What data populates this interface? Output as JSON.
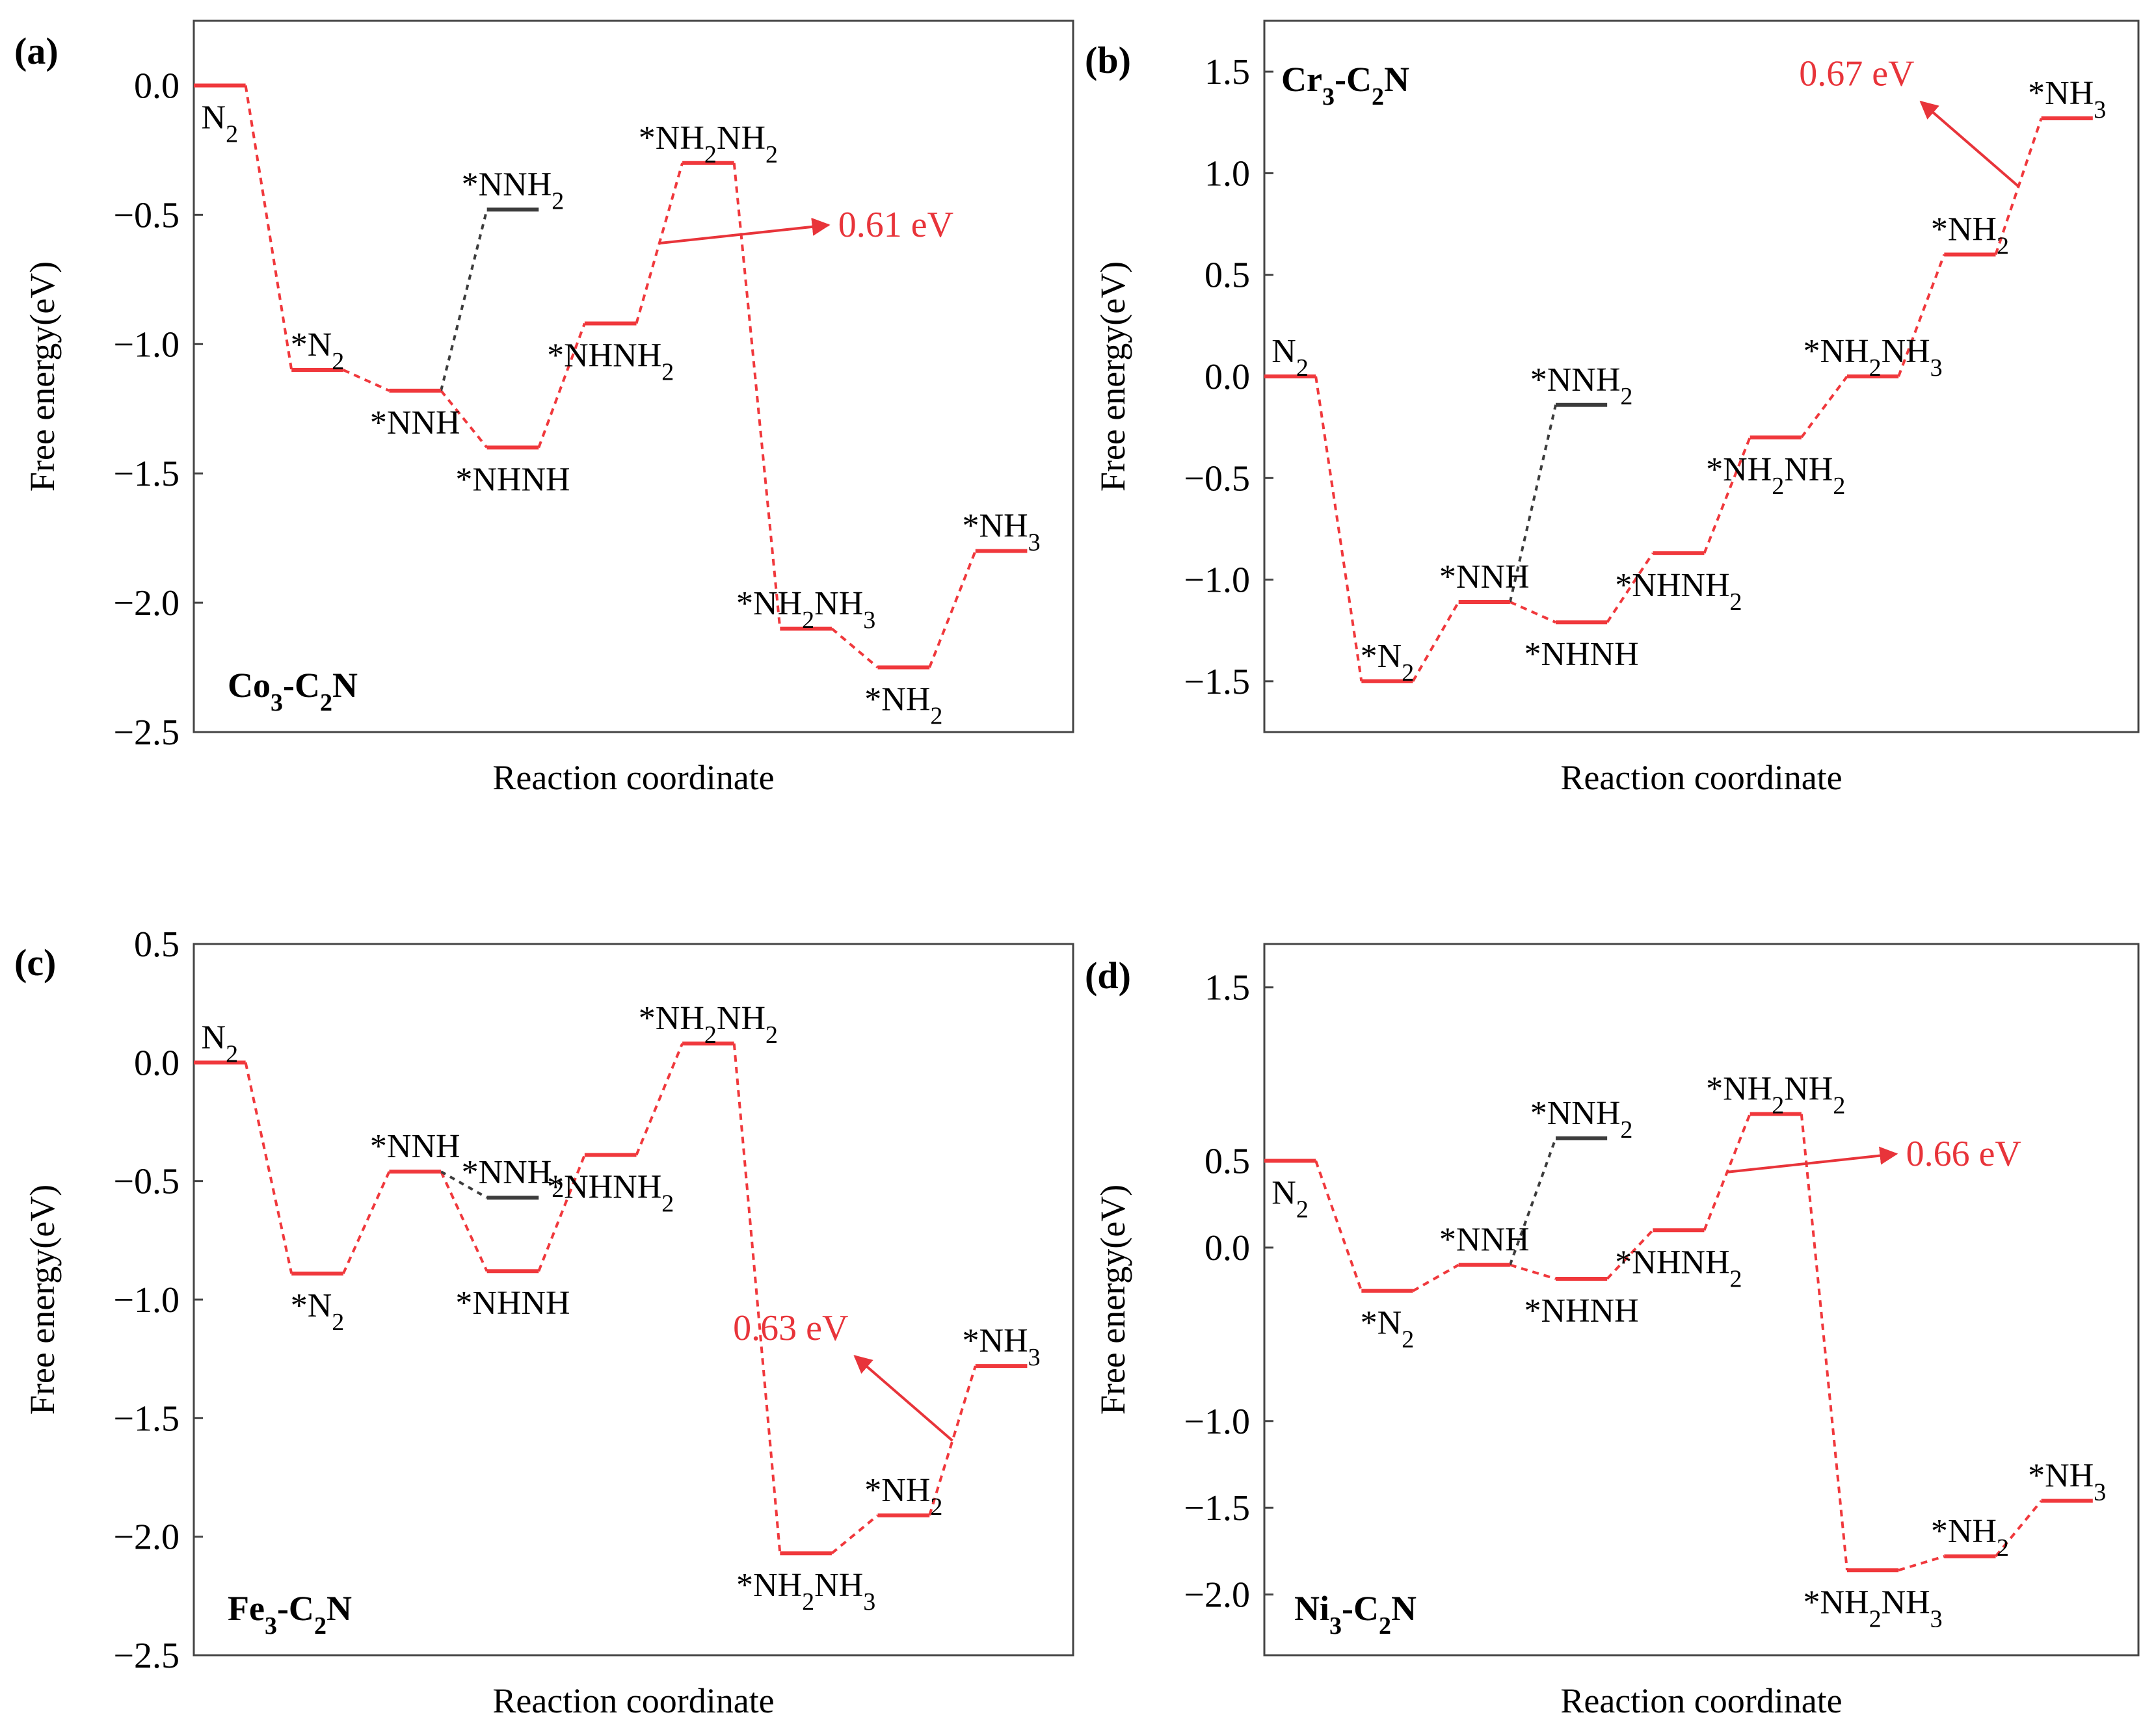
{
  "figure": {
    "x_axis_label": "Reaction coordinate",
    "y_axis_label": "Free energy(eV)"
  },
  "colors": {
    "main": "#f0383c",
    "alt": "#3c3c3c",
    "annotation": "#e8343a"
  },
  "chart_data": [
    {
      "type": "line",
      "panel": "(a)",
      "catalyst": "Co3-C2N",
      "catalyst_parts": {
        "m": "Co",
        "a": "3",
        "b": "-C",
        "c": "2",
        "d": "N"
      },
      "ylim": [
        -2.5,
        0.25
      ],
      "yticks": [
        0.0,
        -0.5,
        -1.0,
        -1.5,
        -2.0,
        -2.5
      ],
      "ytick_labels": [
        "0.0",
        "−0.5",
        "−1.0",
        "−1.5",
        "−2.0",
        "−2.5"
      ],
      "n_steps": 9,
      "main_path": [
        {
          "step": 0,
          "label": "N2",
          "label_parts": [
            "N",
            "2",
            ""
          ],
          "value": 0.0,
          "label_pos": "below"
        },
        {
          "step": 1,
          "label": "*N2",
          "label_parts": [
            "*N",
            "2",
            ""
          ],
          "value": -1.1,
          "label_pos": "above"
        },
        {
          "step": 2,
          "label": "*NNH",
          "label_parts": [
            "*NNH",
            "",
            ""
          ],
          "value": -1.18,
          "label_pos": "below"
        },
        {
          "step": 3,
          "label": "*NHNH",
          "label_parts": [
            "*NHNH",
            "",
            ""
          ],
          "value": -1.4,
          "label_pos": "below"
        },
        {
          "step": 4,
          "label": "*NHNH2",
          "label_parts": [
            "*NHNH",
            "2",
            ""
          ],
          "value": -0.92,
          "label_pos": "below"
        },
        {
          "step": 5,
          "label": "*NH2NH2",
          "label_parts": [
            "*NH",
            "2",
            "NH",
            "2"
          ],
          "value": -0.3,
          "label_pos": "above"
        },
        {
          "step": 6,
          "label": "*NH2NH3",
          "label_parts": [
            "*NH",
            "2",
            "NH",
            "3"
          ],
          "value": -2.1,
          "label_pos": "above"
        },
        {
          "step": 7,
          "label": "*NH2",
          "label_parts": [
            "*NH",
            "2",
            ""
          ],
          "value": -2.25,
          "label_pos": "below"
        },
        {
          "step": 8,
          "label": "*NH3",
          "label_parts": [
            "*NH",
            "3",
            ""
          ],
          "value": -1.8,
          "label_pos": "above"
        }
      ],
      "alt_path": {
        "from_step": 2,
        "step": 3,
        "label": "*NNH2",
        "label_parts": [
          "*NNH",
          "2",
          ""
        ],
        "value": -0.48,
        "label_pos": "above"
      },
      "annotation": {
        "text": "0.61 eV",
        "near_step": 5,
        "direction": "right"
      }
    },
    {
      "type": "line",
      "panel": "(b)",
      "catalyst": "Cr3-C2N",
      "catalyst_parts": {
        "m": "Cr",
        "a": "3",
        "b": "-C",
        "c": "2",
        "d": "N"
      },
      "ylim": [
        -1.75,
        1.75
      ],
      "yticks": [
        1.5,
        1.0,
        0.5,
        0.0,
        -0.5,
        -1.0,
        -1.5
      ],
      "ytick_labels": [
        "1.5",
        "1.0",
        "0.5",
        "0.0",
        "−0.5",
        "−1.0",
        "−1.5"
      ],
      "n_steps": 9,
      "main_path": [
        {
          "step": 0,
          "label": "N2",
          "label_parts": [
            "N",
            "2",
            ""
          ],
          "value": 0.0,
          "label_pos": "above"
        },
        {
          "step": 1,
          "label": "*N2",
          "label_parts": [
            "*N",
            "2",
            ""
          ],
          "value": -1.5,
          "label_pos": "above"
        },
        {
          "step": 2,
          "label": "*NNH",
          "label_parts": [
            "*NNH",
            "",
            ""
          ],
          "value": -1.11,
          "label_pos": "above"
        },
        {
          "step": 3,
          "label": "*NHNH",
          "label_parts": [
            "*NHNH",
            "",
            ""
          ],
          "value": -1.21,
          "label_pos": "below"
        },
        {
          "step": 4,
          "label": "*NHNH2",
          "label_parts": [
            "*NHNH",
            "2",
            ""
          ],
          "value": -0.87,
          "label_pos": "below"
        },
        {
          "step": 5,
          "label": "*NH2NH2",
          "label_parts": [
            "*NH",
            "2",
            "NH",
            "2"
          ],
          "value": -0.3,
          "label_pos": "below"
        },
        {
          "step": 6,
          "label": "*NH2NH3",
          "label_parts": [
            "*NH",
            "2",
            "NH",
            "3"
          ],
          "value": 0.0,
          "label_pos": "above"
        },
        {
          "step": 7,
          "label": "*NH2",
          "label_parts": [
            "*NH",
            "2",
            ""
          ],
          "value": 0.6,
          "label_pos": "above"
        },
        {
          "step": 8,
          "label": "*NH3",
          "label_parts": [
            "*NH",
            "3",
            ""
          ],
          "value": 1.27,
          "label_pos": "above"
        }
      ],
      "alt_path": {
        "from_step": 2,
        "step": 3,
        "label": "*NNH2",
        "label_parts": [
          "*NNH",
          "2",
          ""
        ],
        "value": -0.14,
        "label_pos": "above"
      },
      "annotation": {
        "text": "0.67 eV",
        "near_step": 8,
        "direction": "left"
      }
    },
    {
      "type": "line",
      "panel": "(c)",
      "catalyst": "Fe3-C2N",
      "catalyst_parts": {
        "m": "Fe",
        "a": "3",
        "b": "-C",
        "c": "2",
        "d": "N"
      },
      "ylim": [
        -2.5,
        0.5
      ],
      "yticks": [
        0.5,
        0.0,
        -0.5,
        -1.0,
        -1.5,
        -2.0,
        -2.5
      ],
      "ytick_labels": [
        "0.5",
        "0.0",
        "−0.5",
        "−1.0",
        "−1.5",
        "−2.0",
        "−2.5"
      ],
      "n_steps": 9,
      "main_path": [
        {
          "step": 0,
          "label": "N2",
          "label_parts": [
            "N",
            "2",
            ""
          ],
          "value": 0.0,
          "label_pos": "above"
        },
        {
          "step": 1,
          "label": "*N2",
          "label_parts": [
            "*N",
            "2",
            ""
          ],
          "value": -0.89,
          "label_pos": "below"
        },
        {
          "step": 2,
          "label": "*NNH",
          "label_parts": [
            "*NNH",
            "",
            ""
          ],
          "value": -0.46,
          "label_pos": "above"
        },
        {
          "step": 3,
          "label": "*NHNH",
          "label_parts": [
            "*NHNH",
            "",
            ""
          ],
          "value": -0.88,
          "label_pos": "below"
        },
        {
          "step": 4,
          "label": "*NHNH2",
          "label_parts": [
            "*NHNH",
            "2",
            ""
          ],
          "value": -0.39,
          "label_pos": "below"
        },
        {
          "step": 5,
          "label": "*NH2NH2",
          "label_parts": [
            "*NH",
            "2",
            "NH",
            "2"
          ],
          "value": 0.08,
          "label_pos": "above"
        },
        {
          "step": 6,
          "label": "*NH2NH3",
          "label_parts": [
            "*NH",
            "2",
            "NH",
            "3"
          ],
          "value": -2.07,
          "label_pos": "below"
        },
        {
          "step": 7,
          "label": "*NH2",
          "label_parts": [
            "*NH",
            "2",
            ""
          ],
          "value": -1.91,
          "label_pos": "above"
        },
        {
          "step": 8,
          "label": "*NH3",
          "label_parts": [
            "*NH",
            "3",
            ""
          ],
          "value": -1.28,
          "label_pos": "above"
        }
      ],
      "alt_path": {
        "from_step": 2,
        "step": 3,
        "label": "*NNH2",
        "label_parts": [
          "*NNH",
          "2",
          ""
        ],
        "value": -0.57,
        "label_pos": "above"
      },
      "annotation": {
        "text": "0.63 eV",
        "near_step": 8,
        "direction": "left"
      }
    },
    {
      "type": "line",
      "panel": "(d)",
      "catalyst": "Ni3-C2N",
      "catalyst_parts": {
        "m": "Ni",
        "a": "3",
        "b": "-C",
        "c": "2",
        "d": "N"
      },
      "ylim": [
        -2.35,
        1.75
      ],
      "yticks": [
        1.5,
        0.5,
        0.0,
        -1.0,
        -1.5,
        -2.0
      ],
      "ytick_labels": [
        "1.5",
        "0.5",
        "0.0",
        "−1.0",
        "−1.5",
        "−2.0"
      ],
      "n_steps": 9,
      "main_path": [
        {
          "step": 0,
          "label": "N2",
          "label_parts": [
            "N",
            "2",
            ""
          ],
          "value": 0.5,
          "label_pos": "below"
        },
        {
          "step": 1,
          "label": "*N2",
          "label_parts": [
            "*N",
            "2",
            ""
          ],
          "value": -0.25,
          "label_pos": "below"
        },
        {
          "step": 2,
          "label": "*NNH",
          "label_parts": [
            "*NNH",
            "",
            ""
          ],
          "value": -0.1,
          "label_pos": "above"
        },
        {
          "step": 3,
          "label": "*NHNH",
          "label_parts": [
            "*NHNH",
            "",
            ""
          ],
          "value": -0.18,
          "label_pos": "below"
        },
        {
          "step": 4,
          "label": "*NHNH2",
          "label_parts": [
            "*NHNH",
            "2",
            ""
          ],
          "value": 0.1,
          "label_pos": "below"
        },
        {
          "step": 5,
          "label": "*NH2NH2",
          "label_parts": [
            "*NH",
            "2",
            "NH",
            "2"
          ],
          "value": 0.77,
          "label_pos": "above"
        },
        {
          "step": 6,
          "label": "*NH2NH3",
          "label_parts": [
            "*NH",
            "2",
            "NH",
            "3"
          ],
          "value": -1.86,
          "label_pos": "below"
        },
        {
          "step": 7,
          "label": "*NH2",
          "label_parts": [
            "*NH",
            "2",
            ""
          ],
          "value": -1.78,
          "label_pos": "above"
        },
        {
          "step": 8,
          "label": "*NH3",
          "label_parts": [
            "*NH",
            "3",
            ""
          ],
          "value": -1.46,
          "label_pos": "above"
        }
      ],
      "alt_path": {
        "from_step": 2,
        "step": 3,
        "label": "*NNH2",
        "label_parts": [
          "*NNH",
          "2",
          ""
        ],
        "value": 0.63,
        "label_pos": "above"
      },
      "annotation": {
        "text": "0.66 eV",
        "near_step": 5,
        "direction": "right"
      }
    }
  ]
}
